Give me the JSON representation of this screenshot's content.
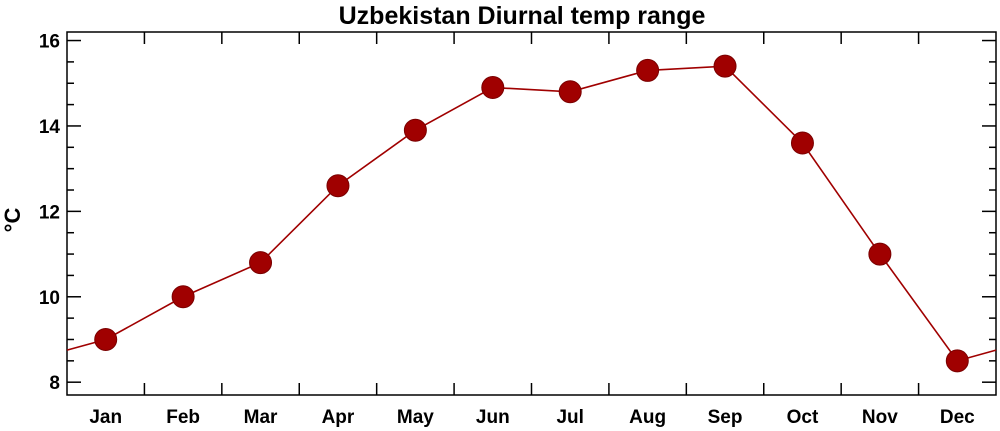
{
  "chart_data": {
    "type": "line",
    "title": "Uzbekistan Diurnal temp range",
    "xlabel": "",
    "ylabel": "°C",
    "categories": [
      "Jan",
      "Feb",
      "Mar",
      "Apr",
      "May",
      "Jun",
      "Jul",
      "Aug",
      "Sep",
      "Oct",
      "Nov",
      "Dec"
    ],
    "series": [
      {
        "values": [
          9.0,
          10.0,
          10.8,
          12.6,
          13.9,
          14.9,
          14.8,
          15.3,
          15.4,
          13.6,
          11.0,
          8.5
        ]
      }
    ],
    "ylim": [
      7.7,
      16.2
    ],
    "yticks": [
      8,
      10,
      12,
      14,
      16
    ],
    "colors": {
      "series": "#a00000",
      "marker_edge": "#7a0000"
    },
    "grid": false,
    "wraps_around": true
  }
}
